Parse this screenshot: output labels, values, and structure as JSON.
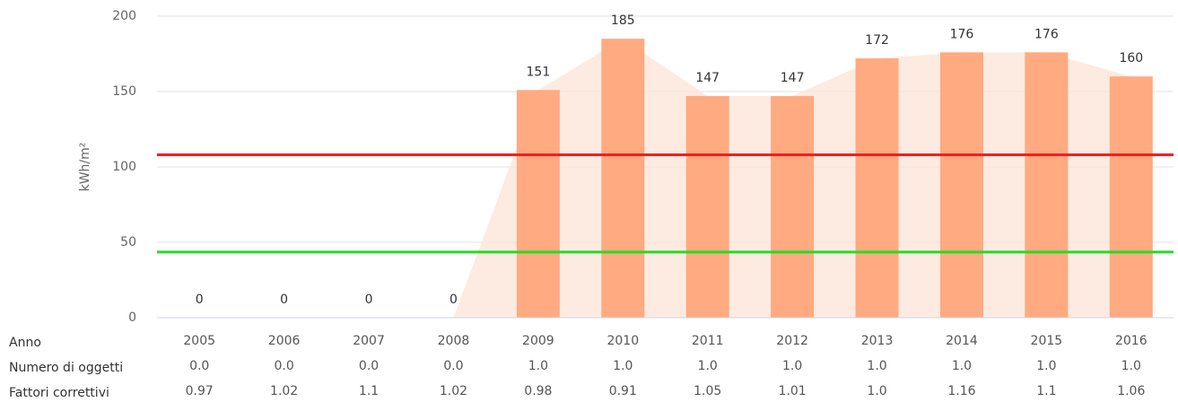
{
  "chart_data": {
    "type": "bar",
    "ylabel": "kWh/m²",
    "xlabel": "Anno",
    "categories": [
      "2005",
      "2006",
      "2007",
      "2008",
      "2009",
      "2010",
      "2011",
      "2012",
      "2013",
      "2014",
      "2015",
      "2016"
    ],
    "values": [
      0,
      0,
      0,
      0,
      151,
      185,
      147,
      147,
      172,
      176,
      176,
      160
    ],
    "color": "#ffaa80",
    "area_color": "#fde6da",
    "ylim": [
      0,
      200
    ],
    "yticks": [
      0,
      50,
      100,
      150,
      200
    ],
    "grid": true,
    "reference_lines": [
      {
        "value": 108,
        "color": "#ff1a1a"
      },
      {
        "value": 43.5,
        "color": "#22dd22"
      }
    ],
    "table_rows": [
      {
        "label": "Numero di oggetti",
        "cells": [
          "0.0",
          "0.0",
          "0.0",
          "0.0",
          "1.0",
          "1.0",
          "1.0",
          "1.0",
          "1.0",
          "1.0",
          "1.0",
          "1.0"
        ]
      },
      {
        "label": "Fattori correttivi",
        "cells": [
          "0.97",
          "1.02",
          "1.1",
          "1.02",
          "0.98",
          "0.91",
          "1.05",
          "1.01",
          "1.0",
          "1.16",
          "1.1",
          "1.06"
        ]
      }
    ]
  }
}
